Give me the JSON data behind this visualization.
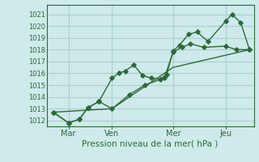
{
  "title": "",
  "xlabel": "Pression niveau de la mer( hPa )",
  "ylabel": "",
  "bg_color": "#ceeaea",
  "grid_color": "#aacece",
  "line_color": "#2d6a38",
  "xlim": [
    0.0,
    9.5
  ],
  "ylim": [
    1011.5,
    1021.8
  ],
  "yticks": [
    1012,
    1013,
    1014,
    1015,
    1016,
    1017,
    1018,
    1019,
    1020,
    1021
  ],
  "xtick_labels": [
    "Mar",
    "Ven",
    "Mer",
    "Jeu"
  ],
  "xtick_positions": [
    1.0,
    3.0,
    5.8,
    8.2
  ],
  "vlines": [
    1.0,
    3.0,
    5.8,
    8.2
  ],
  "series": [
    {
      "x": [
        0.3,
        1.0,
        1.5,
        1.9,
        2.4,
        3.0,
        3.3,
        3.6,
        4.0,
        4.4,
        4.8,
        5.2,
        5.5,
        5.8,
        6.1,
        6.5,
        6.9,
        7.4,
        8.2,
        8.5,
        8.9,
        9.3
      ],
      "y": [
        1012.7,
        1011.8,
        1012.1,
        1013.1,
        1013.6,
        1015.6,
        1016.0,
        1016.2,
        1016.7,
        1015.8,
        1015.6,
        1015.5,
        1015.9,
        1017.9,
        1018.4,
        1019.3,
        1019.5,
        1018.7,
        1020.4,
        1021.0,
        1020.3,
        1018.0
      ],
      "with_markers": true
    },
    {
      "x": [
        0.3,
        1.0,
        1.5,
        1.9,
        2.4,
        3.0,
        3.8,
        4.5,
        5.4,
        5.8,
        6.2,
        6.6,
        7.2,
        8.2,
        8.7,
        9.3
      ],
      "y": [
        1012.7,
        1011.8,
        1012.1,
        1013.1,
        1013.6,
        1013.0,
        1014.2,
        1015.0,
        1015.6,
        1017.8,
        1018.2,
        1018.5,
        1018.2,
        1018.3,
        1018.0,
        1018.0
      ],
      "with_markers": true
    },
    {
      "x": [
        0.3,
        3.0,
        5.8,
        9.3
      ],
      "y": [
        1012.7,
        1013.0,
        1016.5,
        1018.0
      ],
      "with_markers": false
    }
  ],
  "marker": "D",
  "markersize": 2.8,
  "linewidth": 1.0,
  "ytick_fontsize": 6.0,
  "xtick_fontsize": 7.0,
  "xlabel_fontsize": 7.5
}
